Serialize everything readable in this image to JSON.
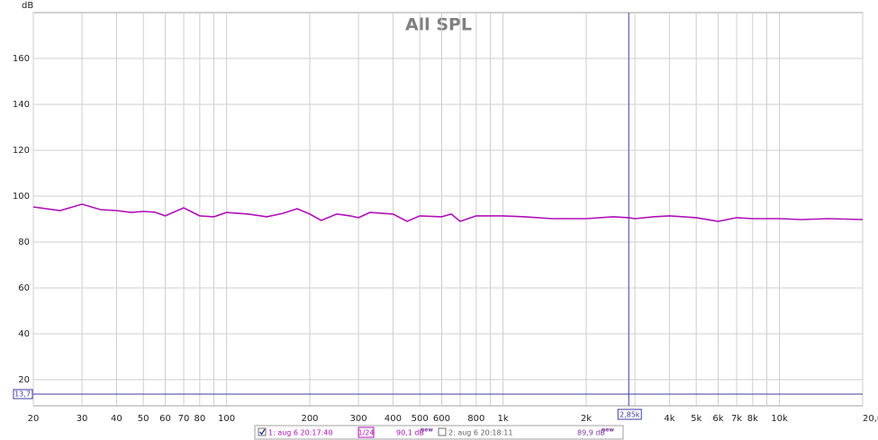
{
  "chart_data": {
    "type": "line",
    "title": "All SPL",
    "ylabel": "dB",
    "scale_x": "log",
    "grid": true,
    "x": [
      20,
      25,
      30,
      35,
      40,
      45,
      50,
      55,
      60,
      70,
      80,
      90,
      100,
      120,
      140,
      160,
      180,
      200,
      220,
      250,
      280,
      300,
      330,
      400,
      450,
      500,
      600,
      650,
      700,
      800,
      900,
      1000,
      1200,
      1500,
      2000,
      2500,
      2850,
      3000,
      3500,
      4000,
      5000,
      6000,
      7000,
      8000,
      10000,
      12000,
      15000,
      20000
    ],
    "series": [
      {
        "name": "1: aug 6 20:17:40",
        "color": "#b010b8",
        "checked": true,
        "smoothing": "1/24",
        "level": "90,1 dB",
        "tag": "new",
        "values": [
          95.3,
          93.7,
          96.5,
          94.1,
          93.7,
          92.9,
          93.3,
          93,
          91.4,
          94.9,
          91.4,
          91,
          92.9,
          92.2,
          91,
          92.5,
          94.5,
          92.2,
          89.4,
          92.2,
          91.4,
          90.6,
          92.9,
          92.2,
          89,
          91.4,
          91,
          92.2,
          89,
          91.4,
          91.4,
          91.4,
          91,
          90.2,
          90.2,
          91,
          90.6,
          90.2,
          91,
          91.4,
          90.6,
          89,
          90.6,
          90.2,
          90.2,
          89.8,
          90.2,
          89.8
        ]
      },
      {
        "name": "2: aug 6 20:18:11",
        "color": "#808080",
        "checked": false,
        "level": "89,9 dB",
        "tag": "new",
        "values": null
      }
    ],
    "xlim": [
      20,
      20000
    ],
    "xticks": [
      20,
      30,
      40,
      50,
      60,
      70,
      80,
      100,
      200,
      300,
      400,
      500,
      600,
      800,
      {
        "value": 1000,
        "label": "1k"
      },
      {
        "value": 2000,
        "label": "2k"
      },
      {
        "value": 4000,
        "label": "4k"
      },
      {
        "value": 5000,
        "label": "5k"
      },
      {
        "value": 6000,
        "label": "6k"
      },
      {
        "value": 7000,
        "label": "7k"
      },
      {
        "value": 8000,
        "label": "8k"
      },
      {
        "value": 10000,
        "label": "10k"
      },
      {
        "value": 20000,
        "label": "20,0k Hz"
      }
    ],
    "xminor": [
      90,
      700,
      900,
      3000,
      9000
    ],
    "ylim": [
      8.6,
      180
    ],
    "yticks": [
      20,
      40,
      60,
      80,
      100,
      120,
      140,
      160
    ],
    "cursor": {
      "color": "#3b3b9e",
      "x": {
        "value": 2850,
        "label": "2,85k"
      },
      "y": {
        "value": 13.7,
        "label": "13,7"
      }
    }
  }
}
